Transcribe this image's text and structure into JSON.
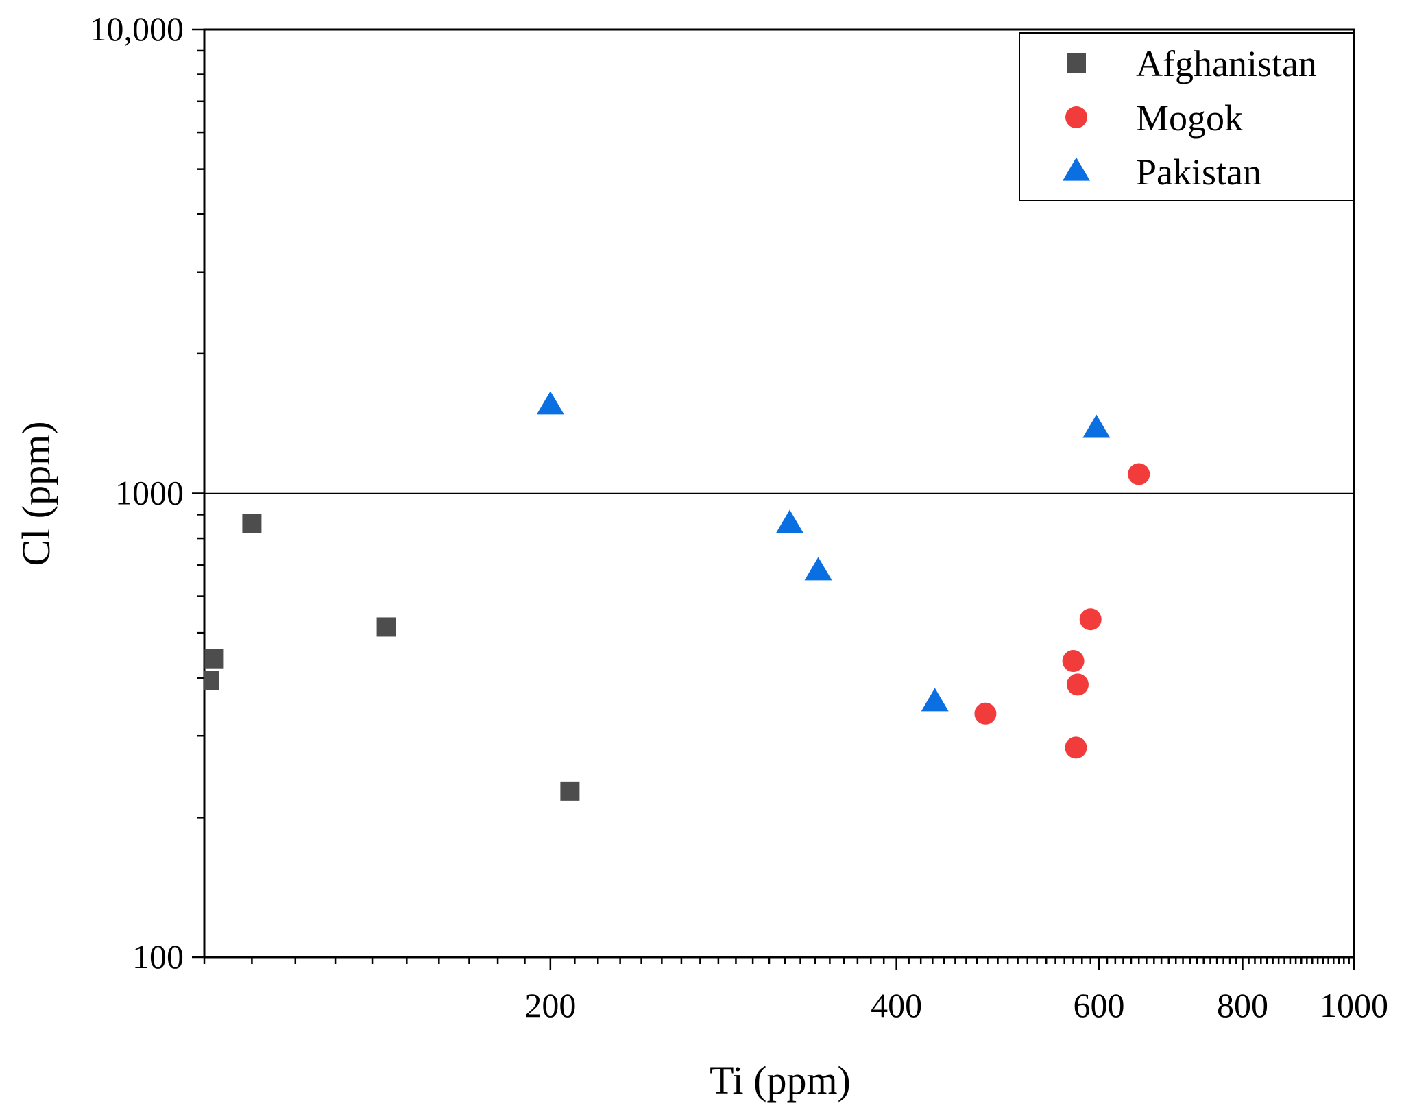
{
  "chart_data": {
    "type": "scatter",
    "title": "",
    "xlabel": "Ti (ppm)",
    "ylabel": "Cl  (ppm)",
    "xscale": "log",
    "yscale": "log",
    "xlim": [
      100,
      1000
    ],
    "ylim": [
      100,
      10000
    ],
    "xticks": [
      {
        "value": 200,
        "label": "200"
      },
      {
        "value": 400,
        "label": "400"
      },
      {
        "value": 600,
        "label": "600"
      },
      {
        "value": 800,
        "label": "800"
      },
      {
        "value": 1000,
        "label": "1000"
      }
    ],
    "yticks": [
      {
        "value": 100,
        "label": "100"
      },
      {
        "value": 1000,
        "label": "1000"
      },
      {
        "value": 10000,
        "label": "10,000"
      }
    ],
    "reference_lines": [
      {
        "axis": "y",
        "value": 1000
      }
    ],
    "legend_position": "top-right",
    "series": [
      {
        "name": "Afghanistan",
        "marker": "square",
        "color": "#4d4d4d",
        "points": [
          [
            101,
            395
          ],
          [
            102,
            440
          ],
          [
            110,
            860
          ],
          [
            144,
            515
          ],
          [
            208,
            228
          ]
        ]
      },
      {
        "name": "Mogok",
        "marker": "circle",
        "color": "#f23c3c",
        "points": [
          [
            478,
            335
          ],
          [
            570,
            435
          ],
          [
            575,
            387
          ],
          [
            573,
            283
          ],
          [
            590,
            535
          ],
          [
            650,
            1100
          ]
        ]
      },
      {
        "name": "Pakistan",
        "marker": "triangle",
        "color": "#0a6fe0",
        "points": [
          [
            200,
            1550
          ],
          [
            323,
            860
          ],
          [
            342,
            680
          ],
          [
            432,
            355
          ],
          [
            597,
            1380
          ]
        ]
      }
    ]
  }
}
